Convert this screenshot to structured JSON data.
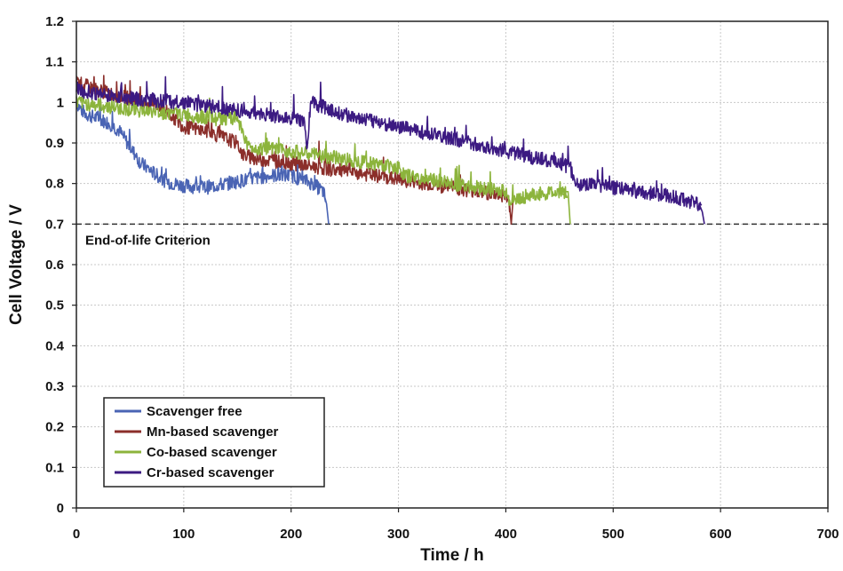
{
  "chart_data": {
    "type": "line",
    "xlabel": "Time / h",
    "ylabel": "Cell Voltage / V",
    "xlim": [
      0,
      700
    ],
    "ylim": [
      0,
      1.2
    ],
    "xticks": [
      "0",
      "100",
      "200",
      "300",
      "400",
      "500",
      "600",
      "700"
    ],
    "yticks": [
      "0",
      "0.1",
      "0.2",
      "0.3",
      "0.4",
      "0.5",
      "0.6",
      "0.7",
      "0.8",
      "0.9",
      "1",
      "1.1",
      "1.2"
    ],
    "grid": true,
    "legend_position": "bottom-left",
    "annotation": {
      "text": "End-of-life Criterion",
      "y": 0.7
    },
    "series": [
      {
        "name": "Scavenger free",
        "color": "#4a64b4",
        "x": [
          0,
          5,
          10,
          20,
          30,
          40,
          50,
          60,
          70,
          80,
          90,
          100,
          120,
          140,
          160,
          180,
          200,
          210,
          220,
          225,
          230,
          233,
          235
        ],
        "y": [
          1.0,
          0.98,
          0.97,
          0.96,
          0.95,
          0.93,
          0.89,
          0.85,
          0.83,
          0.81,
          0.8,
          0.795,
          0.79,
          0.8,
          0.81,
          0.82,
          0.82,
          0.81,
          0.8,
          0.79,
          0.78,
          0.75,
          0.7
        ]
      },
      {
        "name": "Mn-based scavenger",
        "color": "#8b2e2a",
        "x": [
          0,
          20,
          50,
          80,
          100,
          120,
          140,
          150,
          155,
          170,
          200,
          250,
          300,
          350,
          400,
          403,
          405,
          407
        ],
        "y": [
          1.05,
          1.03,
          1.01,
          0.99,
          0.94,
          0.93,
          0.91,
          0.9,
          0.87,
          0.86,
          0.85,
          0.83,
          0.81,
          0.79,
          0.77,
          0.76,
          0.7,
          0.77
        ]
      },
      {
        "name": "Co-based scavenger",
        "color": "#8cb43c",
        "x": [
          0,
          30,
          60,
          100,
          130,
          150,
          155,
          160,
          200,
          250,
          300,
          305,
          350,
          400,
          405,
          410,
          420,
          450,
          458,
          460
        ],
        "y": [
          1.0,
          0.99,
          0.98,
          0.97,
          0.96,
          0.96,
          0.93,
          0.89,
          0.88,
          0.86,
          0.84,
          0.82,
          0.8,
          0.78,
          0.75,
          0.76,
          0.77,
          0.78,
          0.78,
          0.7
        ]
      },
      {
        "name": "Cr-based scavenger",
        "color": "#3c1a82",
        "x": [
          0,
          50,
          100,
          150,
          200,
          213,
          215,
          218,
          250,
          300,
          350,
          400,
          450,
          460,
          465,
          500,
          550,
          580,
          583,
          585
        ],
        "y": [
          1.03,
          1.01,
          1.0,
          0.98,
          0.96,
          0.95,
          0.88,
          1.0,
          0.97,
          0.94,
          0.91,
          0.88,
          0.85,
          0.84,
          0.8,
          0.79,
          0.77,
          0.75,
          0.73,
          0.7
        ]
      }
    ]
  }
}
